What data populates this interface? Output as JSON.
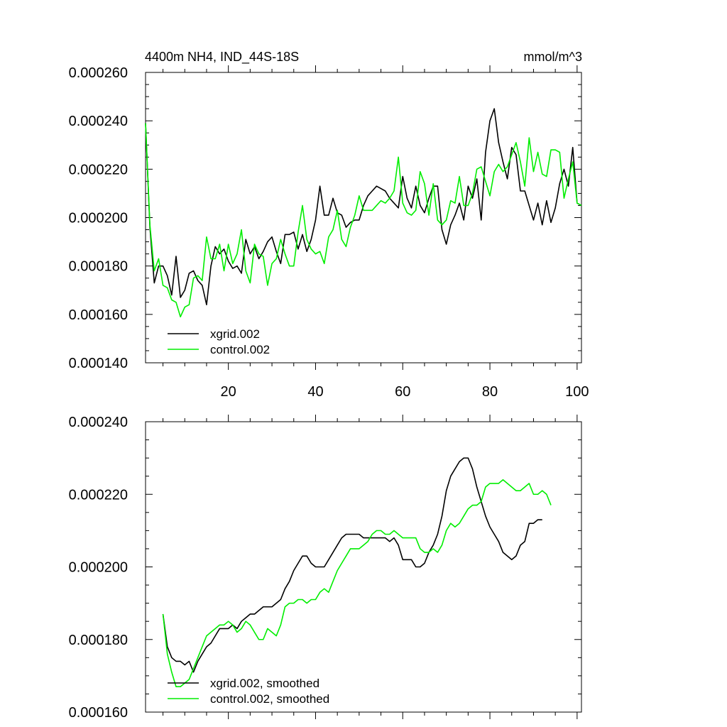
{
  "colors": {
    "black": "#000000",
    "green": "#00ee00"
  },
  "chart_data": [
    {
      "type": "line",
      "title": "4400m NH4, IND_44S-18S",
      "units": "mmol/m^3",
      "xlim": [
        1,
        101
      ],
      "ylim": [
        0.00014,
        0.00026
      ],
      "xticks": [
        20,
        40,
        60,
        80,
        100
      ],
      "xticklabels": [
        "20",
        "40",
        "60",
        "80",
        "100"
      ],
      "yticks": [
        0.00014,
        0.00016,
        0.00018,
        0.0002,
        0.00022,
        0.00024,
        0.00026
      ],
      "yticklabels": [
        "0.000140",
        "0.000160",
        "0.000180",
        "0.000200",
        "0.000220",
        "0.000240",
        "0.000260"
      ],
      "legend_position": "bottom-left",
      "series": [
        {
          "name": "xgrid.002",
          "color": "#000000",
          "x_start": 1,
          "values": [
            0.000239,
            0.000196,
            0.000173,
            0.00018,
            0.00018,
            0.000176,
            0.000168,
            0.000184,
            0.000167,
            0.00017,
            0.000177,
            0.000178,
            0.000174,
            0.000172,
            0.000164,
            0.00018,
            0.000188,
            0.000185,
            0.000187,
            0.000182,
            0.000179,
            0.00018,
            0.000177,
            0.000191,
            0.000185,
            0.000188,
            0.000183,
            0.000186,
            0.00019,
            0.000192,
            0.000186,
            0.000181,
            0.000193,
            0.000193,
            0.000194,
            0.000187,
            0.000193,
            0.000186,
            0.000191,
            0.000199,
            0.000213,
            0.000201,
            0.000201,
            0.000208,
            0.000202,
            0.000201,
            0.000196,
            0.000198,
            0.000199,
            0.000199,
            0.000205,
            0.000209,
            0.000211,
            0.000213,
            0.000212,
            0.000211,
            0.000208,
            0.000206,
            0.000204,
            0.000217,
            0.000208,
            0.000204,
            0.000213,
            0.000205,
            0.000202,
            0.000208,
            0.000213,
            0.000213,
            0.000195,
            0.000189,
            0.000197,
            0.000201,
            0.000206,
            0.000199,
            0.000213,
            0.000208,
            0.000216,
            0.000199,
            0.000227,
            0.00024,
            0.000245,
            0.000231,
            0.000223,
            0.000216,
            0.000229,
            0.000226,
            0.000211,
            0.000211,
            0.000205,
            0.000199,
            0.000206,
            0.000197,
            0.000207,
            0.000198,
            0.000204,
            0.000214,
            0.00022,
            0.000213,
            0.000229,
            0.000206,
            0.000205
          ]
        },
        {
          "name": "control.002",
          "color": "#00ee00",
          "x_start": 1,
          "values": [
            0.000239,
            0.000197,
            0.000178,
            0.000183,
            0.000172,
            0.000171,
            0.000166,
            0.000165,
            0.000159,
            0.000163,
            0.000164,
            0.000175,
            0.000176,
            0.000174,
            0.000192,
            0.000183,
            0.000183,
            0.000189,
            0.000178,
            0.000189,
            0.000181,
            0.000185,
            0.000195,
            0.000178,
            0.000173,
            0.000189,
            0.000185,
            0.000184,
            0.000172,
            0.000181,
            0.000183,
            0.000191,
            0.000185,
            0.00018,
            0.00018,
            0.000194,
            0.000205,
            0.000191,
            0.000187,
            0.000185,
            0.000186,
            0.000181,
            0.000192,
            0.000195,
            0.000203,
            0.000191,
            0.000188,
            0.000196,
            0.000201,
            0.000209,
            0.000203,
            0.000203,
            0.000203,
            0.000205,
            0.000207,
            0.000206,
            0.000208,
            0.000211,
            0.000225,
            0.000206,
            0.000202,
            0.000201,
            0.000203,
            0.000219,
            0.000214,
            0.000201,
            0.000214,
            0.000199,
            0.000197,
            0.000199,
            0.000207,
            0.000206,
            0.000217,
            0.000205,
            0.000205,
            0.00021,
            0.00022,
            0.000221,
            0.000215,
            0.000209,
            0.000219,
            0.000222,
            0.000219,
            0.000221,
            0.000226,
            0.000231,
            0.000223,
            0.000213,
            0.000233,
            0.000219,
            0.000227,
            0.000218,
            0.000217,
            0.000228,
            0.000228,
            0.000227,
            0.000208,
            0.000216,
            0.000223,
            0.000206,
            0.000205
          ]
        }
      ]
    },
    {
      "type": "line",
      "title": "",
      "xlim": [
        1,
        101
      ],
      "ylim": [
        0.00016,
        0.00024
      ],
      "xticks": [
        20,
        40,
        60,
        80,
        100
      ],
      "xticklabels": [],
      "yticks": [
        0.00016,
        0.00018,
        0.0002,
        0.00022,
        0.00024
      ],
      "yticklabels": [
        "0.000160",
        "0.000180",
        "0.000200",
        "0.000220",
        "0.000240"
      ],
      "legend_position": "bottom-left",
      "series": [
        {
          "name": "xgrid.002, smoothed",
          "color": "#000000",
          "x_start": 5,
          "values": [
            0.000187,
            0.000178,
            0.000175,
            0.000174,
            0.000174,
            0.000173,
            0.000174,
            0.000171,
            0.000174,
            0.000176,
            0.000178,
            0.000179,
            0.000181,
            0.000183,
            0.000183,
            0.000183,
            0.000184,
            0.000183,
            0.000185,
            0.000186,
            0.000187,
            0.000187,
            0.000188,
            0.000189,
            0.000189,
            0.000189,
            0.00019,
            0.000191,
            0.000194,
            0.000196,
            0.000199,
            0.000201,
            0.000203,
            0.000203,
            0.000201,
            0.0002,
            0.0002,
            0.0002,
            0.000202,
            0.000204,
            0.000206,
            0.000208,
            0.000209,
            0.000209,
            0.000209,
            0.000209,
            0.000208,
            0.000208,
            0.000208,
            0.000208,
            0.000208,
            0.000208,
            0.000207,
            0.000208,
            0.000206,
            0.000202,
            0.000202,
            0.000202,
            0.0002,
            0.0002,
            0.000201,
            0.000204,
            0.000206,
            0.000209,
            0.000214,
            0.000221,
            0.000225,
            0.000227,
            0.000229,
            0.00023,
            0.00023,
            0.000227,
            0.000222,
            0.000218,
            0.000214,
            0.000211,
            0.000209,
            0.000207,
            0.000204,
            0.000203,
            0.000202,
            0.000203,
            0.000206,
            0.000207,
            0.000212,
            0.000212,
            0.000213,
            0.000213
          ]
        },
        {
          "name": "control.002, smoothed",
          "color": "#00ee00",
          "x_start": 5,
          "values": [
            0.000187,
            0.000176,
            0.000171,
            0.000167,
            0.000167,
            0.000168,
            0.000169,
            0.000172,
            0.000175,
            0.000178,
            0.000181,
            0.000182,
            0.000183,
            0.000184,
            0.000184,
            0.000185,
            0.000184,
            0.000182,
            0.000183,
            0.000185,
            0.000184,
            0.000182,
            0.00018,
            0.00018,
            0.000183,
            0.000182,
            0.000181,
            0.000184,
            0.000189,
            0.00019,
            0.00019,
            0.000191,
            0.000191,
            0.00019,
            0.000191,
            0.000191,
            0.000193,
            0.000194,
            0.000193,
            0.000196,
            0.000199,
            0.000201,
            0.000203,
            0.000205,
            0.000205,
            0.000205,
            0.000206,
            0.000207,
            0.000209,
            0.00021,
            0.00021,
            0.000209,
            0.000209,
            0.00021,
            0.000209,
            0.000208,
            0.000208,
            0.000208,
            0.000208,
            0.000205,
            0.000204,
            0.000204,
            0.000205,
            0.000204,
            0.000206,
            0.00021,
            0.000212,
            0.000211,
            0.000212,
            0.000214,
            0.000216,
            0.000217,
            0.000217,
            0.000218,
            0.000222,
            0.000223,
            0.000223,
            0.000223,
            0.000224,
            0.000223,
            0.000222,
            0.000221,
            0.000221,
            0.000222,
            0.000223,
            0.00022,
            0.00022,
            0.000221,
            0.00022,
            0.000217
          ]
        }
      ]
    }
  ]
}
